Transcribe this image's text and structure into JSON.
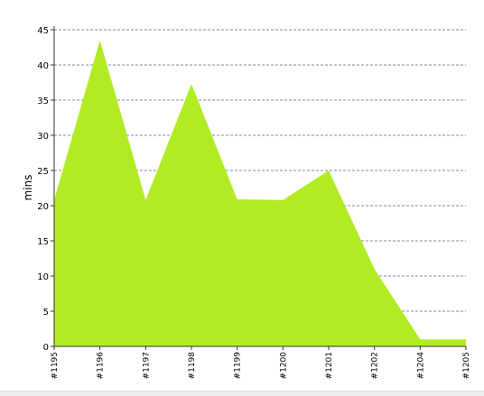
{
  "chart_data": {
    "type": "area",
    "title": "",
    "xlabel": "",
    "ylabel": "mins",
    "categories": [
      "#1195",
      "#1196",
      "#1197",
      "#1198",
      "#1199",
      "#1200",
      "#1201",
      "#1202",
      "#1204",
      "#1205"
    ],
    "series": [
      {
        "name": "",
        "values": [
          20.8,
          43.5,
          20.8,
          37.3,
          20.9,
          20.8,
          25.0,
          11.0,
          1.0,
          1.0
        ]
      }
    ],
    "ylim": [
      0,
      45
    ],
    "yticks": [
      0,
      5,
      10,
      15,
      20,
      25,
      30,
      35,
      40,
      45
    ],
    "grid": true,
    "legend": "none",
    "colors": {
      "area_fill": "#b0eb24",
      "grid": "#888888",
      "axis": "#333333"
    }
  }
}
